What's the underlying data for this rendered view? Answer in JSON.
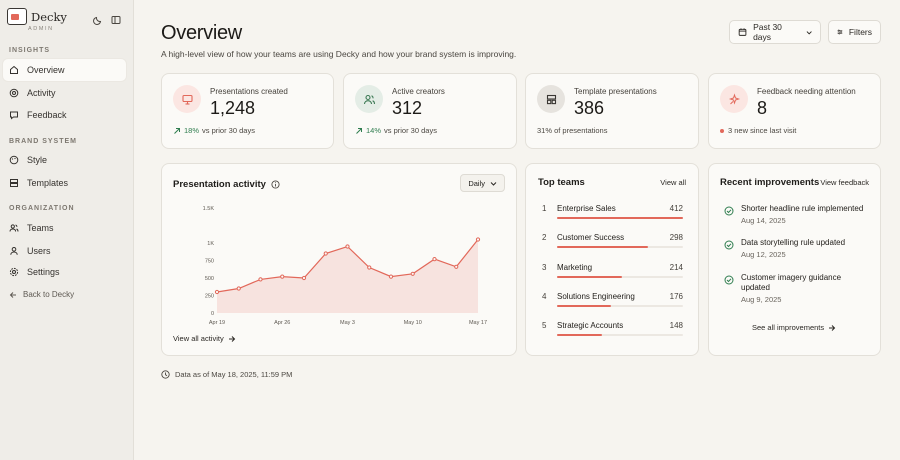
{
  "brand": {
    "name": "Decky",
    "subtitle": "ADMIN"
  },
  "sidebar": {
    "sections": [
      "INSIGHTS",
      "BRAND SYSTEM",
      "ORGANIZATION"
    ],
    "items": [
      {
        "label": "Overview",
        "icon": "home-icon",
        "active": true
      },
      {
        "label": "Activity",
        "icon": "target-icon"
      },
      {
        "label": "Feedback",
        "icon": "message-icon"
      },
      {
        "label": "Style",
        "icon": "palette-icon"
      },
      {
        "label": "Templates",
        "icon": "templates-icon"
      },
      {
        "label": "Teams",
        "icon": "teams-icon"
      },
      {
        "label": "Users",
        "icon": "user-icon"
      },
      {
        "label": "Settings",
        "icon": "gear-icon"
      }
    ],
    "back": "Back to Decky"
  },
  "header": {
    "title": "Overview",
    "description": "A high-level view of how your teams are using Decky and how your brand system is improving.",
    "range_label": "Past 30 days",
    "filters_label": "Filters"
  },
  "stats": [
    {
      "label": "Presentations created",
      "value": "1,248",
      "change": "18%",
      "change_suffix": "vs prior 30 days",
      "icon": "presentation-icon"
    },
    {
      "label": "Active creators",
      "value": "312",
      "change": "14%",
      "change_suffix": "vs prior 30 days",
      "icon": "users-icon"
    },
    {
      "label": "Template presentations",
      "value": "386",
      "note": "31% of presentations",
      "icon": "layout-icon"
    },
    {
      "label": "Feedback needing attention",
      "value": "8",
      "note": "3 new since last visit",
      "icon": "sparkle-icon"
    }
  ],
  "activity": {
    "title": "Presentation activity",
    "granularity": "Daily",
    "link": "View all activity"
  },
  "chart_data": {
    "type": "area",
    "title": "Presentation activity",
    "x_ticks": [
      "Apr 19",
      "Apr 26",
      "May 3",
      "May 10",
      "May 17"
    ],
    "y_ticks": [
      "1.5K",
      "1K",
      "750",
      "500",
      "250",
      "0"
    ],
    "ylim": [
      0,
      1500
    ],
    "values": [
      300,
      350,
      480,
      520,
      500,
      850,
      950,
      650,
      520,
      560,
      770,
      660,
      1050
    ],
    "color": "#e2685a",
    "grid": false
  },
  "teams": {
    "title": "Top teams",
    "link": "View all",
    "max": 412,
    "rows": [
      {
        "rank": "1",
        "name": "Enterprise Sales",
        "value": 412
      },
      {
        "rank": "2",
        "name": "Customer Success",
        "value": 298
      },
      {
        "rank": "3",
        "name": "Marketing",
        "value": 214
      },
      {
        "rank": "4",
        "name": "Solutions Engineering",
        "value": 176
      },
      {
        "rank": "5",
        "name": "Strategic Accounts",
        "value": 148
      }
    ]
  },
  "improvements": {
    "title": "Recent improvements",
    "link": "View feedback",
    "items": [
      {
        "title": "Shorter headline rule implemented",
        "date": "Aug 14, 2025"
      },
      {
        "title": "Data storytelling rule updated",
        "date": "Aug 12, 2025"
      },
      {
        "title": "Customer imagery guidance updated",
        "date": "Aug 9, 2025"
      }
    ],
    "see_all": "See all improvements"
  },
  "footer": {
    "note": "Data as of May 18, 2025, 11:59 PM"
  },
  "colors": {
    "accent": "#e2685a",
    "positive": "#2f7d4f",
    "background": "#f6f4ef"
  }
}
